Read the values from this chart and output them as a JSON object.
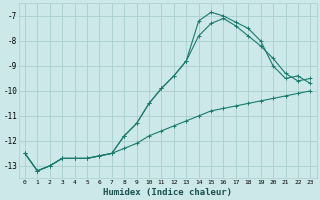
{
  "title": "",
  "xlabel": "Humidex (Indice chaleur)",
  "background_color": "#cce8e8",
  "grid_color": "#aacfcf",
  "line_color": "#1a7a6e",
  "xlim": [
    -0.5,
    23.5
  ],
  "ylim": [
    -13.5,
    -6.5
  ],
  "yticks": [
    -13,
    -12,
    -11,
    -10,
    -9,
    -8,
    -7
  ],
  "xticks": [
    0,
    1,
    2,
    3,
    4,
    5,
    6,
    7,
    8,
    9,
    10,
    11,
    12,
    13,
    14,
    15,
    16,
    17,
    18,
    19,
    20,
    21,
    22,
    23
  ],
  "xtick_labels": [
    "0",
    "1",
    "2",
    "3",
    "4",
    "5",
    "6",
    "7",
    "8",
    "9",
    "10",
    "11",
    "12",
    "13",
    "14",
    "15",
    "16",
    "17",
    "18",
    "19",
    "20",
    "21",
    "22",
    "23"
  ],
  "curve1_x": [
    0,
    1,
    2,
    3,
    4,
    5,
    6,
    7,
    8,
    9,
    10,
    11,
    12,
    13,
    14,
    15,
    16,
    17,
    18,
    19,
    20,
    21,
    22,
    23
  ],
  "curve1_y": [
    -12.5,
    -13.2,
    -13.0,
    -12.7,
    -12.7,
    -12.7,
    -12.6,
    -12.5,
    -12.3,
    -12.1,
    -11.8,
    -11.6,
    -11.4,
    -11.2,
    -11.0,
    -10.8,
    -10.7,
    -10.6,
    -10.5,
    -10.4,
    -10.3,
    -10.2,
    -10.1,
    -10.0
  ],
  "curve2_x": [
    0,
    1,
    2,
    3,
    4,
    5,
    6,
    7,
    8,
    9,
    10,
    11,
    12,
    13,
    14,
    15,
    16,
    17,
    18,
    19,
    20,
    21,
    22,
    23
  ],
  "curve2_y": [
    -12.5,
    -13.2,
    -13.0,
    -12.7,
    -12.7,
    -12.7,
    -12.6,
    -12.5,
    -11.8,
    -11.3,
    -10.5,
    -9.9,
    -9.4,
    -8.8,
    -7.8,
    -7.3,
    -7.1,
    -7.4,
    -7.8,
    -8.2,
    -8.7,
    -9.3,
    -9.6,
    -9.5
  ],
  "curve3_x": [
    0,
    1,
    2,
    3,
    4,
    5,
    6,
    7,
    8,
    9,
    10,
    11,
    12,
    13,
    14,
    15,
    16,
    17,
    18,
    19,
    20,
    21,
    22,
    23
  ],
  "curve3_y": [
    -12.5,
    -13.2,
    -13.0,
    -12.7,
    -12.7,
    -12.7,
    -12.6,
    -12.5,
    -11.8,
    -11.3,
    -10.5,
    -9.9,
    -9.4,
    -8.8,
    -7.2,
    -6.85,
    -7.0,
    -7.25,
    -7.5,
    -8.0,
    -9.0,
    -9.5,
    -9.4,
    -9.7
  ]
}
